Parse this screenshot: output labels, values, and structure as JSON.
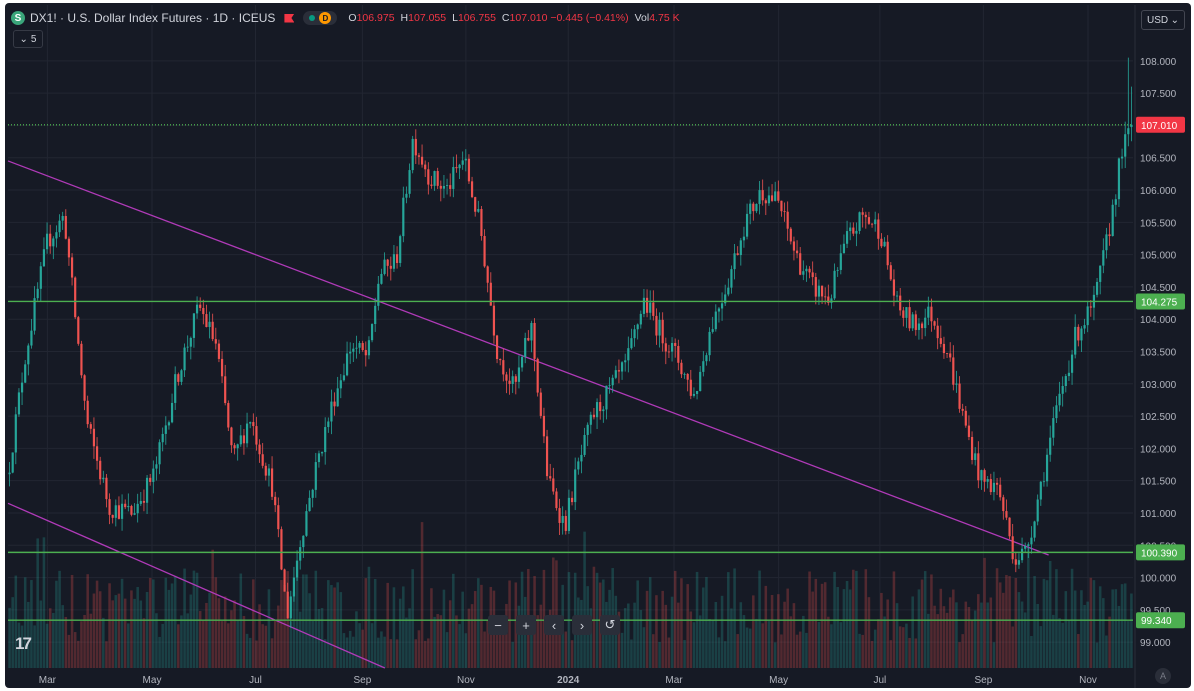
{
  "header": {
    "symbol_badge": "S",
    "title": "DX1! · U.S. Dollar Index Futures · 1D · ICEUS",
    "interval_badge": "D",
    "ohlc": [
      {
        "key": "O",
        "value": "106.975"
      },
      {
        "key": "H",
        "value": "107.055"
      },
      {
        "key": "L",
        "value": "106.755"
      },
      {
        "key": "C",
        "value": "107.010 −0.445 (−0.41%)"
      },
      {
        "key": "Vol",
        "value": "4.75 K"
      }
    ],
    "collapse_label": "5"
  },
  "currency": {
    "label": "USD"
  },
  "toolbar": {
    "minus": "−",
    "plus": "+",
    "prev": "‹",
    "next": "›",
    "reset": "↺"
  },
  "logo_text": "17",
  "auto_badge": "A",
  "colors": {
    "bg": "#161a25",
    "up": "#26a69a",
    "down": "#ef5350",
    "grid": "#222632",
    "level_line": "#4caf50",
    "trend_line": "#b03ab8",
    "text": "#b2b5be",
    "last_price_label": "#f23645",
    "level_label": "#4caf50"
  },
  "chart_data": {
    "type": "candlestick",
    "y_axis": {
      "min": 98.6,
      "max": 108.4,
      "ticks": [
        "99.000",
        "99.500",
        "100.000",
        "100.500",
        "101.000",
        "101.500",
        "102.000",
        "102.500",
        "103.000",
        "103.500",
        "104.000",
        "104.500",
        "105.000",
        "105.500",
        "106.000",
        "106.500",
        "107.000",
        "107.500",
        "108.000"
      ]
    },
    "x_axis": {
      "labels": [
        {
          "label": "Mar",
          "t": 0.035
        },
        {
          "label": "May",
          "t": 0.128
        },
        {
          "label": "Jul",
          "t": 0.22
        },
        {
          "label": "Sep",
          "t": 0.315
        },
        {
          "label": "Nov",
          "t": 0.407
        },
        {
          "label": "2024",
          "t": 0.498,
          "bold": true
        },
        {
          "label": "Mar",
          "t": 0.592
        },
        {
          "label": "May",
          "t": 0.685
        },
        {
          "label": "Jul",
          "t": 0.775
        },
        {
          "label": "Sep",
          "t": 0.867
        },
        {
          "label": "Nov",
          "t": 0.96
        }
      ]
    },
    "price_path": [
      [
        0.0,
        101.6
      ],
      [
        0.015,
        103.4
      ],
      [
        0.035,
        105.2
      ],
      [
        0.05,
        105.6
      ],
      [
        0.07,
        102.4
      ],
      [
        0.09,
        101.1
      ],
      [
        0.11,
        101.0
      ],
      [
        0.13,
        101.6
      ],
      [
        0.15,
        103.1
      ],
      [
        0.17,
        104.2
      ],
      [
        0.185,
        103.6
      ],
      [
        0.2,
        101.8
      ],
      [
        0.215,
        102.5
      ],
      [
        0.235,
        101.4
      ],
      [
        0.248,
        99.4
      ],
      [
        0.26,
        100.6
      ],
      [
        0.275,
        101.8
      ],
      [
        0.29,
        102.8
      ],
      [
        0.305,
        103.6
      ],
      [
        0.32,
        103.4
      ],
      [
        0.33,
        104.7
      ],
      [
        0.345,
        104.9
      ],
      [
        0.36,
        106.8
      ],
      [
        0.375,
        106.2
      ],
      [
        0.39,
        106.0
      ],
      [
        0.405,
        106.5
      ],
      [
        0.42,
        105.4
      ],
      [
        0.435,
        103.5
      ],
      [
        0.45,
        102.9
      ],
      [
        0.465,
        103.9
      ],
      [
        0.48,
        101.5
      ],
      [
        0.495,
        100.8
      ],
      [
        0.505,
        101.6
      ],
      [
        0.52,
        102.5
      ],
      [
        0.535,
        102.9
      ],
      [
        0.55,
        103.3
      ],
      [
        0.565,
        104.3
      ],
      [
        0.58,
        103.8
      ],
      [
        0.595,
        103.4
      ],
      [
        0.61,
        102.8
      ],
      [
        0.625,
        103.9
      ],
      [
        0.64,
        104.6
      ],
      [
        0.655,
        105.5
      ],
      [
        0.67,
        106.0
      ],
      [
        0.685,
        105.8
      ],
      [
        0.7,
        105.0
      ],
      [
        0.715,
        104.5
      ],
      [
        0.73,
        104.3
      ],
      [
        0.745,
        105.2
      ],
      [
        0.76,
        105.6
      ],
      [
        0.775,
        105.4
      ],
      [
        0.79,
        104.2
      ],
      [
        0.805,
        103.9
      ],
      [
        0.82,
        104.1
      ],
      [
        0.835,
        103.5
      ],
      [
        0.85,
        102.4
      ],
      [
        0.865,
        101.5
      ],
      [
        0.88,
        101.4
      ],
      [
        0.895,
        100.3
      ],
      [
        0.905,
        100.4
      ],
      [
        0.92,
        101.6
      ],
      [
        0.935,
        102.8
      ],
      [
        0.95,
        103.8
      ],
      [
        0.965,
        104.2
      ],
      [
        0.978,
        105.3
      ],
      [
        0.99,
        106.6
      ],
      [
        1.0,
        107.0
      ]
    ],
    "volatility": 0.22,
    "volume_max_fraction": 0.16,
    "levels": [
      {
        "price": 107.01,
        "label": "107.010",
        "style": "dotted",
        "label_color": "#f23645"
      },
      {
        "price": 104.275,
        "label": "104.275",
        "style": "solid",
        "label_color": "#4caf50"
      },
      {
        "price": 100.39,
        "label": "100.390",
        "style": "solid",
        "label_color": "#4caf50"
      },
      {
        "price": 99.34,
        "label": "99.340",
        "style": "solid",
        "label_color": "#4caf50"
      }
    ],
    "trend_lines": [
      {
        "x1": 0.0,
        "y1": 106.45,
        "x2": 0.925,
        "y2": 100.35
      },
      {
        "x1": 0.0,
        "y1": 101.15,
        "x2": 0.335,
        "y2": 98.6
      }
    ]
  }
}
